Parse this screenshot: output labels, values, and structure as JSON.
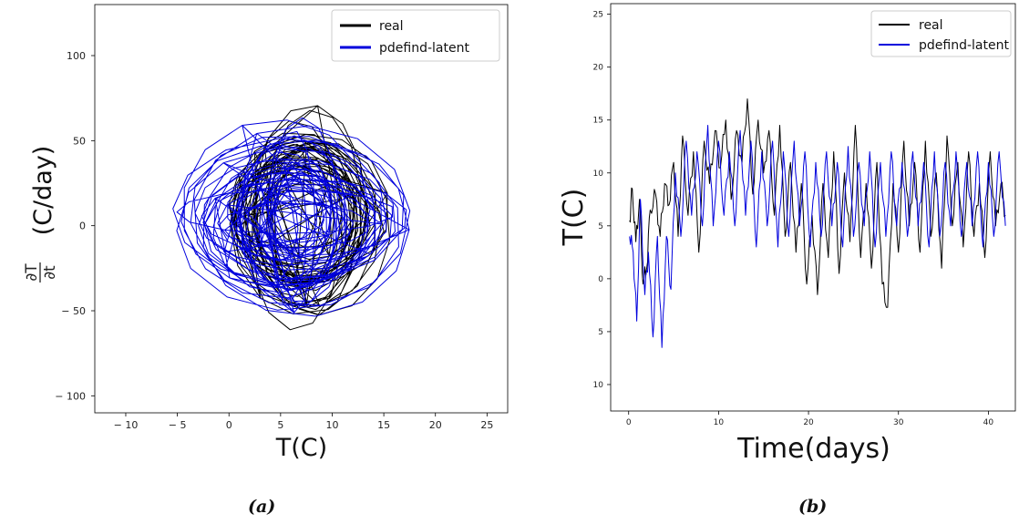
{
  "chart_data": [
    {
      "panel": "(a)",
      "type": "line",
      "xlabel": "T(C)",
      "ylabel": "(C/day)",
      "ylabel_frac_num": "∂T",
      "ylabel_frac_den": "∂t",
      "xlim": [
        -13,
        27
      ],
      "ylim": [
        -110,
        130
      ],
      "xticks": [
        -10,
        -5,
        0,
        5,
        10,
        15,
        20,
        25
      ],
      "xtick_labels": [
        "− 10",
        "− 5",
        "0",
        "5",
        "10",
        "15",
        "20",
        "25"
      ],
      "yticks": [
        -100,
        -50,
        0,
        50,
        100
      ],
      "ytick_labels": [
        "− 100",
        "− 50",
        "0",
        "50",
        "100"
      ],
      "legend_position": "top-right",
      "series": [
        {
          "name": "real",
          "color": "#000000",
          "center": [
            7.5,
            5
          ],
          "radius_x": [
            3.5,
            7.5
          ],
          "radius_y": [
            22,
            62
          ],
          "loops": 30
        },
        {
          "name": "pdefind-latent",
          "color": "#0000dd",
          "center": [
            6,
            3
          ],
          "radius_x": [
            1.5,
            11.5
          ],
          "radius_y": [
            12,
            55
          ],
          "loops": 38
        }
      ]
    },
    {
      "panel": "(b)",
      "type": "line",
      "xlabel": "Time(days)",
      "ylabel": "T(C)",
      "xlim": [
        -2,
        43
      ],
      "ylim": [
        12.5,
        -26
      ],
      "xticks": [
        0,
        10,
        20,
        30,
        40
      ],
      "xtick_labels": [
        "0",
        "10",
        "20",
        "30",
        "40"
      ],
      "yticks": [
        10,
        5,
        0,
        -5,
        -10,
        -15,
        -20,
        -25
      ],
      "ytick_labels": [
        "10",
        "5",
        "0",
        "5",
        "10",
        "15",
        "20",
        "25"
      ],
      "legend_position": "top-right",
      "series": [
        {
          "name": "real",
          "color": "#000000",
          "keypoints": [
            [
              0.1,
              -5.5
            ],
            [
              0.4,
              -8.5
            ],
            [
              0.8,
              -3.5
            ],
            [
              1.2,
              -7.5
            ],
            [
              1.6,
              0.5
            ],
            [
              2,
              -1
            ],
            [
              2.4,
              -6.5
            ],
            [
              3,
              -8
            ],
            [
              3.5,
              -4
            ],
            [
              4,
              -9
            ],
            [
              4.5,
              -7
            ],
            [
              5,
              -11
            ],
            [
              5.5,
              -4
            ],
            [
              6,
              -13.5
            ],
            [
              6.6,
              -6
            ],
            [
              7.2,
              -12
            ],
            [
              7.8,
              -2.5
            ],
            [
              8.4,
              -13
            ],
            [
              9,
              -9
            ],
            [
              9.6,
              -14
            ],
            [
              10.2,
              -10.5
            ],
            [
              10.8,
              -15
            ],
            [
              11.4,
              -7.5
            ],
            [
              12,
              -14
            ],
            [
              12.6,
              -11
            ],
            [
              13.2,
              -17
            ],
            [
              13.8,
              -8
            ],
            [
              14.4,
              -15
            ],
            [
              15,
              -10
            ],
            [
              15.6,
              -14
            ],
            [
              16.2,
              -6
            ],
            [
              16.8,
              -14.5
            ],
            [
              17.4,
              -4
            ],
            [
              18,
              -11
            ],
            [
              18.6,
              -2.5
            ],
            [
              19.2,
              -9
            ],
            [
              19.8,
              0.5
            ],
            [
              20.4,
              -6
            ],
            [
              21,
              1.5
            ],
            [
              21.6,
              -9
            ],
            [
              22.2,
              -2
            ],
            [
              22.8,
              -12
            ],
            [
              23.4,
              -0.5
            ],
            [
              24,
              -10
            ],
            [
              24.6,
              -3.5
            ],
            [
              25.2,
              -14.5
            ],
            [
              25.8,
              -2
            ],
            [
              26.4,
              -9
            ],
            [
              27,
              -1
            ],
            [
              27.6,
              -11
            ],
            [
              28.2,
              0.5
            ],
            [
              28.8,
              2.7
            ],
            [
              29.4,
              -9
            ],
            [
              30,
              -2.5
            ],
            [
              30.6,
              -13
            ],
            [
              31.2,
              -5
            ],
            [
              31.8,
              -11
            ],
            [
              32.4,
              -2.5
            ],
            [
              33,
              -13
            ],
            [
              33.6,
              -4
            ],
            [
              34.2,
              -10
            ],
            [
              34.8,
              -1
            ],
            [
              35.4,
              -13.5
            ],
            [
              36,
              -5
            ],
            [
              36.6,
              -11
            ],
            [
              37.2,
              -3
            ],
            [
              37.8,
              -12
            ],
            [
              38.4,
              -4
            ],
            [
              39,
              -9
            ],
            [
              39.6,
              -2
            ],
            [
              40.2,
              -12
            ],
            [
              40.8,
              -5
            ],
            [
              41.4,
              -9
            ],
            [
              41.9,
              -6
            ]
          ]
        },
        {
          "name": "pdefind-latent",
          "color": "#0000dd",
          "keypoints": [
            [
              0.1,
              -4
            ],
            [
              0.5,
              -2.5
            ],
            [
              0.9,
              4
            ],
            [
              1.3,
              -7.5
            ],
            [
              1.8,
              1.5
            ],
            [
              2.2,
              -2.5
            ],
            [
              2.7,
              5.5
            ],
            [
              3.2,
              -4
            ],
            [
              3.7,
              6.5
            ],
            [
              4.2,
              -4
            ],
            [
              4.7,
              1
            ],
            [
              5.2,
              -10
            ],
            [
              5.8,
              -4
            ],
            [
              6.4,
              -13
            ],
            [
              7,
              -6
            ],
            [
              7.6,
              -12
            ],
            [
              8.2,
              -5
            ],
            [
              8.8,
              -14.5
            ],
            [
              9.4,
              -5
            ],
            [
              10,
              -13
            ],
            [
              10.6,
              -6
            ],
            [
              11.2,
              -12
            ],
            [
              11.8,
              -5
            ],
            [
              12.4,
              -14
            ],
            [
              13,
              -6
            ],
            [
              13.6,
              -13
            ],
            [
              14.2,
              -3
            ],
            [
              14.8,
              -12
            ],
            [
              15.4,
              -5
            ],
            [
              16,
              -13
            ],
            [
              16.6,
              -3
            ],
            [
              17.2,
              -12
            ],
            [
              17.8,
              -4
            ],
            [
              18.4,
              -13
            ],
            [
              19,
              -5
            ],
            [
              19.6,
              -12
            ],
            [
              20.2,
              -3
            ],
            [
              20.8,
              -11
            ],
            [
              21.4,
              -4
            ],
            [
              22,
              -12
            ],
            [
              22.6,
              -5
            ],
            [
              23.2,
              -11
            ],
            [
              23.8,
              -3
            ],
            [
              24.4,
              -12.5
            ],
            [
              25,
              -4
            ],
            [
              25.6,
              -11
            ],
            [
              26.2,
              -5
            ],
            [
              26.8,
              -12
            ],
            [
              27.4,
              -3
            ],
            [
              28,
              -11
            ],
            [
              28.6,
              -4
            ],
            [
              29.2,
              -12
            ],
            [
              29.8,
              -5
            ],
            [
              30.4,
              -11
            ],
            [
              31,
              -4
            ],
            [
              31.6,
              -12
            ],
            [
              32.2,
              -5
            ],
            [
              32.8,
              -11
            ],
            [
              33.4,
              -3
            ],
            [
              34,
              -12
            ],
            [
              34.6,
              -4
            ],
            [
              35.2,
              -11
            ],
            [
              35.8,
              -5
            ],
            [
              36.4,
              -12
            ],
            [
              37,
              -4
            ],
            [
              37.6,
              -11
            ],
            [
              38.2,
              -5
            ],
            [
              38.8,
              -12
            ],
            [
              39.4,
              -3
            ],
            [
              40,
              -11
            ],
            [
              40.6,
              -4
            ],
            [
              41.2,
              -12
            ],
            [
              41.9,
              -5
            ]
          ]
        }
      ]
    }
  ],
  "captions": {
    "a": "(a)",
    "b": "(b)"
  }
}
